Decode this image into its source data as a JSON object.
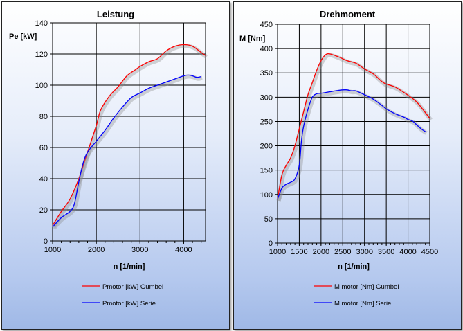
{
  "chart_data": [
    {
      "type": "line",
      "title": "Leistung",
      "xlabel": "n [1/min]",
      "ylabel": "Pe [kW]",
      "xlim": [
        1000,
        4500
      ],
      "ylim": [
        0,
        140
      ],
      "xticks": [
        1000,
        2000,
        3000,
        4000
      ],
      "yticks": [
        0,
        20,
        40,
        60,
        80,
        100,
        120,
        140
      ],
      "grid": true,
      "legend": "bottom",
      "series": [
        {
          "name": "Pmotor [kW] Gumbel",
          "color": "#ff0000",
          "x": [
            1000,
            1200,
            1400,
            1600,
            1800,
            2000,
            2100,
            2300,
            2500,
            2700,
            2900,
            3000,
            3200,
            3400,
            3600,
            3800,
            4000,
            4200,
            4400,
            4500
          ],
          "y": [
            10,
            19,
            27,
            40,
            57,
            74,
            84,
            93,
            99,
            106,
            110,
            112,
            115,
            117,
            122,
            125,
            126,
            125,
            121,
            119
          ]
        },
        {
          "name": "Pmotor [kW] Serie",
          "color": "#0000ff",
          "x": [
            1000,
            1200,
            1400,
            1500,
            1600,
            1700,
            1800,
            2000,
            2200,
            2400,
            2600,
            2800,
            3000,
            3200,
            3400,
            3600,
            3800,
            4000,
            4100,
            4200,
            4300,
            4400
          ],
          "y": [
            9,
            15,
            19,
            24,
            38,
            50,
            57,
            64,
            71,
            79,
            86,
            92,
            95,
            98,
            100,
            102,
            104,
            106,
            106.5,
            106,
            105,
            105.5
          ]
        }
      ]
    },
    {
      "type": "line",
      "title": "Drehmoment",
      "xlabel": "n [1/min]",
      "ylabel": "M [Nm]",
      "xlim": [
        1000,
        4500
      ],
      "ylim": [
        0,
        450
      ],
      "xticks": [
        1000,
        1500,
        2000,
        2500,
        3000,
        3500,
        4000,
        4500
      ],
      "yticks": [
        0,
        50,
        100,
        150,
        200,
        250,
        300,
        350,
        400,
        450
      ],
      "grid": true,
      "legend": "bottom",
      "series": [
        {
          "name": "M motor [Nm] Gumbel",
          "color": "#ff0000",
          "x": [
            1000,
            1100,
            1200,
            1300,
            1400,
            1500,
            1600,
            1700,
            1800,
            1900,
            2000,
            2100,
            2200,
            2400,
            2600,
            2800,
            3000,
            3200,
            3400,
            3500,
            3700,
            3900,
            4000,
            4200,
            4400,
            4500
          ],
          "y": [
            90,
            140,
            160,
            175,
            200,
            235,
            270,
            305,
            330,
            355,
            375,
            387,
            389,
            383,
            375,
            370,
            358,
            348,
            332,
            327,
            321,
            310,
            304,
            290,
            268,
            256
          ]
        },
        {
          "name": "M motor [Nm] Serie",
          "color": "#0000ff",
          "x": [
            1000,
            1100,
            1200,
            1300,
            1400,
            1500,
            1550,
            1600,
            1700,
            1800,
            1900,
            2000,
            2200,
            2400,
            2500,
            2600,
            2700,
            2800,
            3000,
            3200,
            3400,
            3500,
            3700,
            3900,
            4000,
            4100,
            4200,
            4300,
            4400
          ],
          "y": [
            90,
            113,
            121,
            125,
            132,
            160,
            210,
            240,
            275,
            300,
            307,
            308,
            311,
            314,
            315,
            315,
            313,
            313,
            305,
            296,
            283,
            276,
            266,
            259,
            254,
            251,
            243,
            235,
            229
          ]
        }
      ]
    }
  ]
}
